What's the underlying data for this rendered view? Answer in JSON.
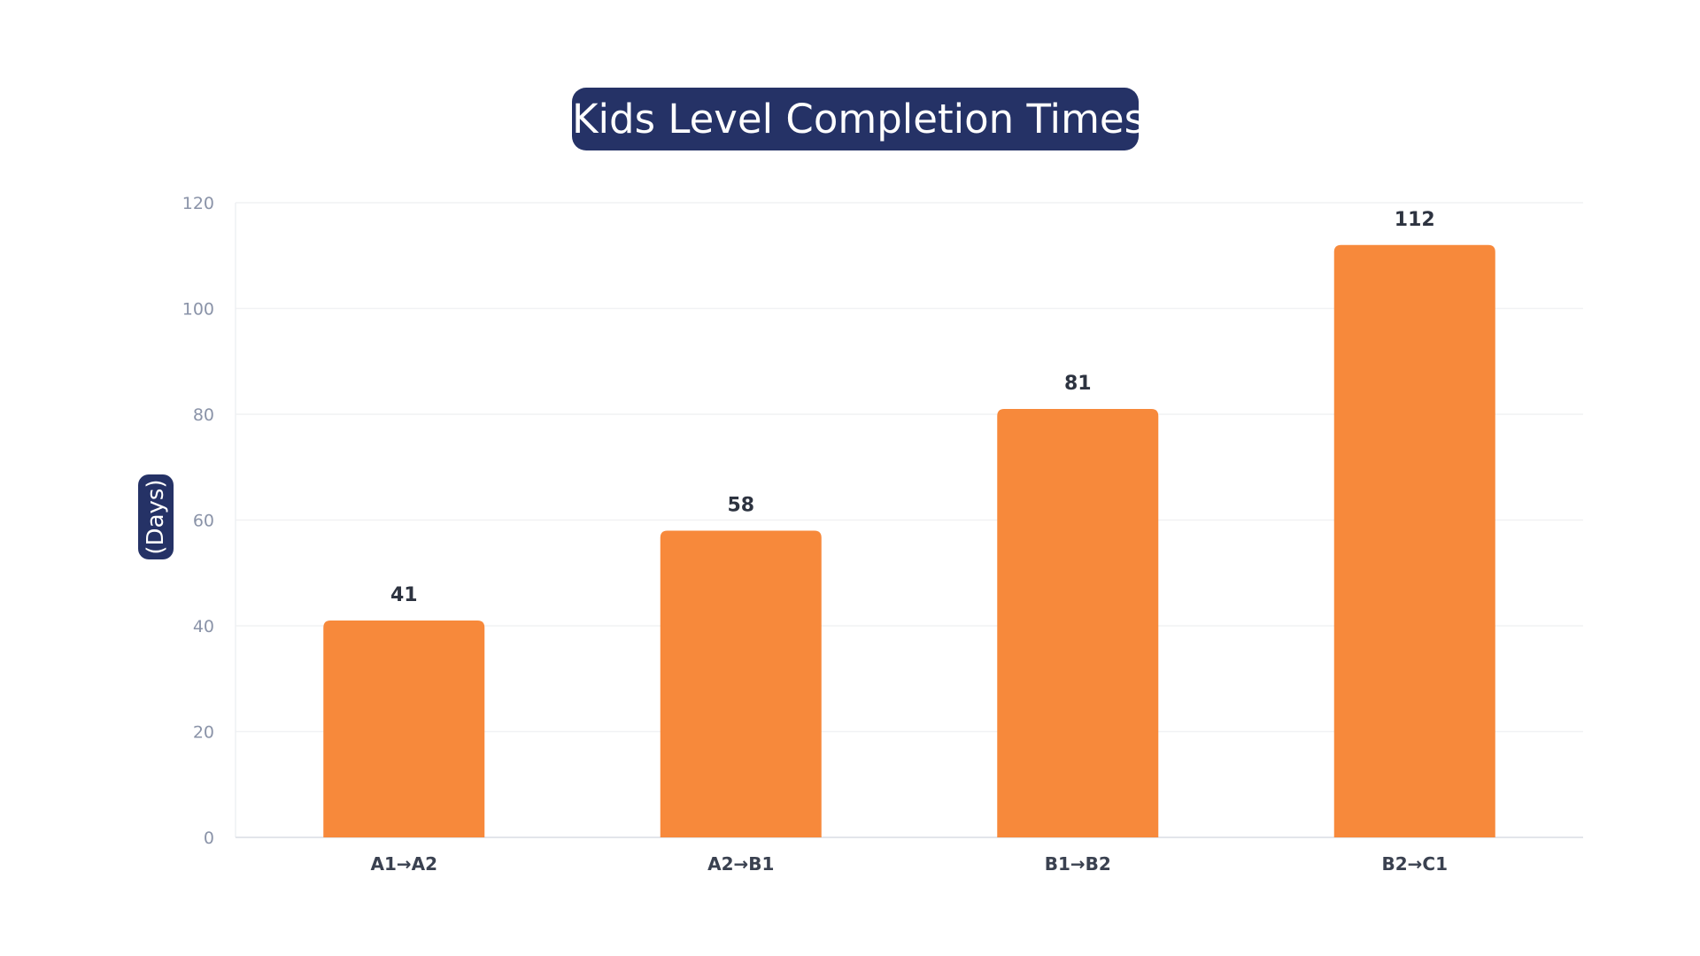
{
  "chart_data": {
    "type": "bar",
    "title": "Kids Level Completion Times",
    "xlabel": "",
    "ylabel": "(Days)",
    "categories": [
      "A1→A2",
      "A2→B1",
      "B1→B2",
      "B2→C1"
    ],
    "values": [
      41,
      58,
      81,
      112
    ],
    "data_labels": [
      "41",
      "58",
      "81",
      "112"
    ],
    "ylim": [
      0,
      120
    ],
    "yticks": [
      0,
      20,
      40,
      60,
      80,
      100,
      120
    ],
    "grid": true,
    "legend": "none",
    "colors": {
      "bar": "#F7893B",
      "title_background": "#253266",
      "tick_text": "#8A93A8",
      "data_label_text": "#2D3340",
      "gridline": "#F1F2F4"
    }
  }
}
